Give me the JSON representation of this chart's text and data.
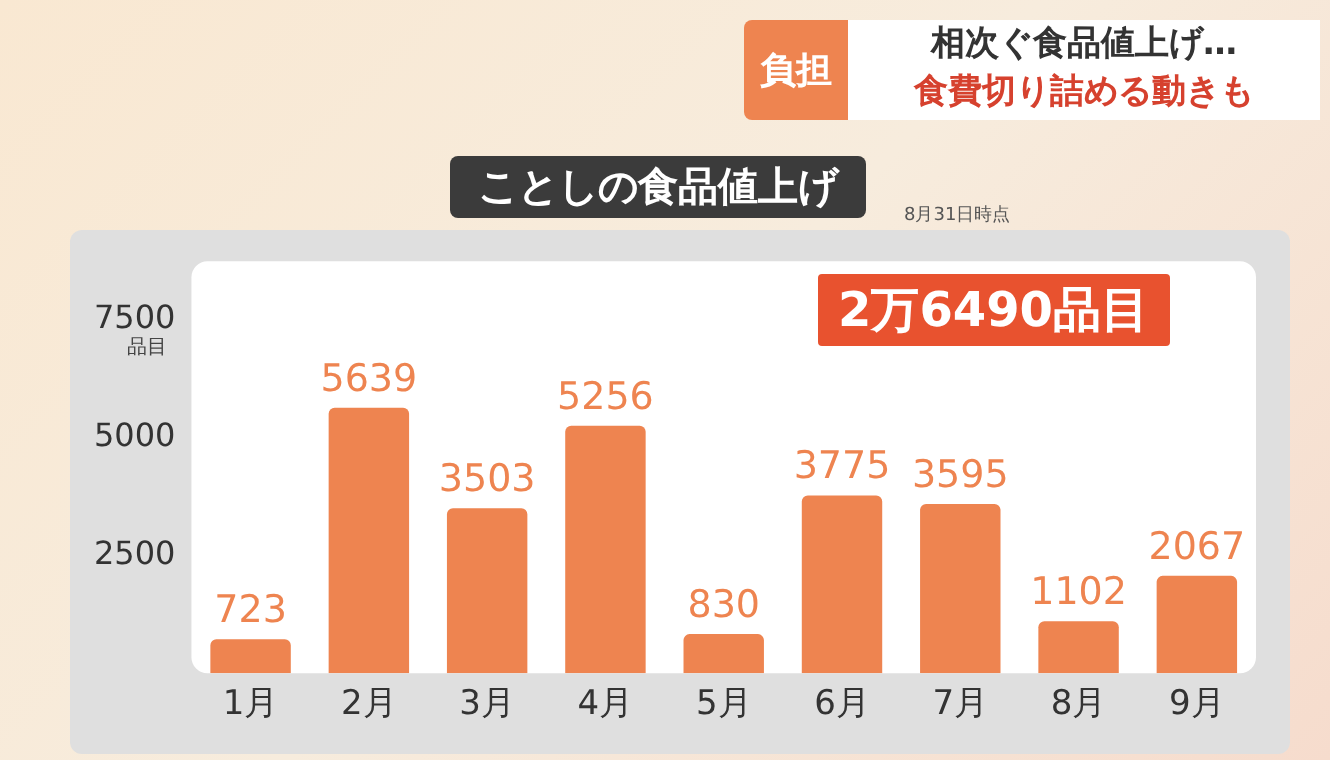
{
  "chart_data": {
    "type": "bar",
    "title": "ことしの食品値上げ",
    "ylabel": "品目",
    "annotations": [
      "負担",
      "相次ぐ食品値上げ…",
      "食費切り詰める動きも",
      "2万6490品目",
      "8月31日時点"
    ],
    "categories": [
      "1月",
      "2月",
      "3月",
      "4月",
      "5月",
      "6月",
      "7月",
      "8月",
      "9月"
    ],
    "values": [
      723,
      5639,
      3503,
      5256,
      830,
      3775,
      3595,
      1102,
      2067
    ],
    "color": "#ee8450",
    "ylim": [
      0,
      8750
    ],
    "yticks": [
      2500,
      5000,
      7500
    ],
    "grid": false,
    "data_labels": true
  }
}
